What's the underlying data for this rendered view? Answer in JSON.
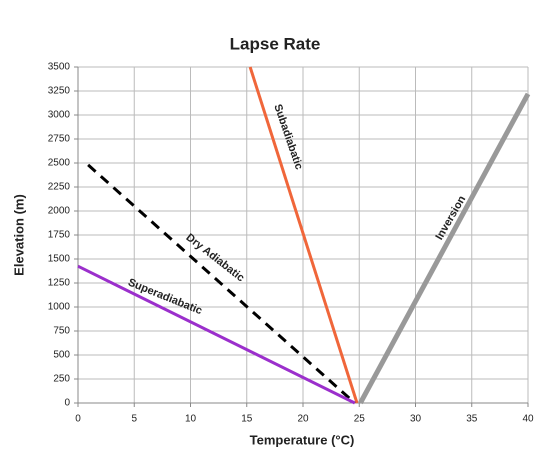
{
  "chart_data": {
    "type": "line",
    "title": "Lapse Rate",
    "x_label": "Temperature (°C)",
    "y_label": "Elevation (m)",
    "xlim": [
      0,
      40
    ],
    "xticks": [
      0,
      5,
      10,
      15,
      20,
      25,
      30,
      35,
      40
    ],
    "ylim": [
      0,
      3500
    ],
    "yticks": [
      0,
      250,
      500,
      750,
      1000,
      1250,
      1500,
      1750,
      2000,
      2250,
      2500,
      2750,
      3000,
      3250,
      3500
    ],
    "grid": true,
    "series": [
      {
        "name": "Subadiabatic",
        "color": "#f0663a",
        "dash": false,
        "x": [
          15.3,
          24.8
        ],
        "values": [
          3500,
          0
        ]
      },
      {
        "name": "Dry Adiabatic",
        "color": "#000000",
        "dash": true,
        "x": [
          0.9,
          24.6
        ],
        "values": [
          2480,
          0
        ]
      },
      {
        "name": "Superadiabatic",
        "color": "#9b2fcc",
        "dash": false,
        "x": [
          0,
          24.6
        ],
        "values": [
          1425,
          0
        ]
      },
      {
        "name": "Inversion",
        "color": "#999999",
        "dash": false,
        "x": [
          25.1,
          40
        ],
        "values": [
          0,
          3220
        ]
      }
    ]
  }
}
